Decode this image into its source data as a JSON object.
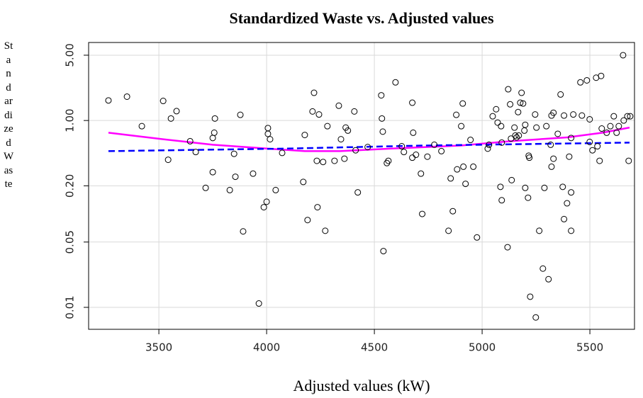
{
  "chart_data": {
    "type": "scatter",
    "title": "Standardized Waste vs. Adjusted values",
    "xlabel": "Adjusted values (kW)",
    "ylabel": "Standardized Waste",
    "xlim": [
      3174,
      5707
    ],
    "ylim": [
      0.00582,
      6.84
    ],
    "ylog": true,
    "grid": true,
    "xticks": [
      3500,
      4000,
      4500,
      5000,
      5500
    ],
    "yticks": [
      {
        "value": 5,
        "label": "5.00"
      },
      {
        "value": 1,
        "label": "1.00"
      },
      {
        "value": 0.2,
        "label": "0.20"
      },
      0.05,
      0.01
    ],
    "color": "#000000",
    "x": [
      3266,
      3352,
      3421,
      3520,
      3556,
      3582,
      3543,
      3645,
      3671,
      3717,
      3750,
      3760,
      3757,
      3750,
      3849,
      3829,
      3855,
      3878,
      3891,
      3937,
      3964,
      3987,
      4000,
      4006,
      4006,
      4016,
      4042,
      4072,
      4170,
      4177,
      4190,
      4213,
      4220,
      4243,
      4233,
      4236,
      4262,
      4272,
      4282,
      4315,
      4335,
      4345,
      4361,
      4367,
      4377,
      4407,
      4413,
      4423,
      4469,
      4532,
      4535,
      4539,
      4542,
      4558,
      4565,
      4598,
      4627,
      4637,
      4676,
      4680,
      4676,
      4693,
      4716,
      4722,
      4746,
      4778,
      4811,
      4844,
      4854,
      4864,
      4880,
      4884,
      4903,
      4910,
      4913,
      4923,
      4946,
      4959,
      4976,
      5026,
      5032,
      5049,
      5065,
      5072,
      5085,
      5088,
      5091,
      5091,
      5118,
      5121,
      5130,
      5137,
      5134,
      5150,
      5154,
      5160,
      5170,
      5167,
      5177,
      5183,
      5190,
      5196,
      5200,
      5200,
      5213,
      5216,
      5219,
      5223,
      5246,
      5249,
      5252,
      5265,
      5282,
      5289,
      5298,
      5308,
      5318,
      5322,
      5322,
      5331,
      5331,
      5351,
      5364,
      5380,
      5374,
      5394,
      5380,
      5404,
      5413,
      5413,
      5413,
      5423,
      5456,
      5463,
      5486,
      5499,
      5512,
      5499,
      5529,
      5552,
      5535,
      5545,
      5555,
      5578,
      5595,
      5611,
      5624,
      5634,
      5654,
      5657,
      5674,
      5680,
      5687
    ],
    "values": [
      1.64,
      1.8,
      0.87,
      1.62,
      1.05,
      1.26,
      0.38,
      0.6,
      0.46,
      0.19,
      0.28,
      1.05,
      0.74,
      0.65,
      0.44,
      0.18,
      0.25,
      1.15,
      0.065,
      0.27,
      0.011,
      0.118,
      0.135,
      0.83,
      0.72,
      0.63,
      0.18,
      0.45,
      0.22,
      0.7,
      0.086,
      1.25,
      1.98,
      1.16,
      0.37,
      0.118,
      0.36,
      0.066,
      0.87,
      0.37,
      1.44,
      0.63,
      0.39,
      0.84,
      0.78,
      1.25,
      0.48,
      0.17,
      0.52,
      1.86,
      1.05,
      0.76,
      0.04,
      0.35,
      0.37,
      2.56,
      0.53,
      0.46,
      1.55,
      0.74,
      0.4,
      0.43,
      0.27,
      0.1,
      0.41,
      0.55,
      0.47,
      0.066,
      0.24,
      0.107,
      1.15,
      0.3,
      0.87,
      1.52,
      0.32,
      0.21,
      0.62,
      0.32,
      0.056,
      0.5,
      0.55,
      1.11,
      1.32,
      0.95,
      0.195,
      0.87,
      0.14,
      0.58,
      0.044,
      2.16,
      1.49,
      0.23,
      0.64,
      0.84,
      0.69,
      0.66,
      0.69,
      1.23,
      1.55,
      1.98,
      1.52,
      0.78,
      0.9,
      0.19,
      0.149,
      0.42,
      0.4,
      0.013,
      1.16,
      0.0078,
      0.84,
      0.066,
      0.026,
      0.19,
      0.87,
      0.02,
      0.55,
      1.13,
      0.32,
      1.21,
      0.39,
      0.72,
      1.9,
      1.13,
      0.195,
      0.13,
      0.088,
      0.41,
      0.17,
      0.066,
      0.65,
      1.16,
      2.56,
      1.13,
      2.69,
      1.03,
      0.48,
      0.59,
      2.87,
      3.0,
      0.53,
      0.37,
      0.82,
      0.74,
      0.87,
      1.11,
      0.74,
      0.87,
      5.0,
      1.0,
      1.11,
      0.37,
      1.11
    ],
    "lines": [
      {
        "color": "#ff00ff",
        "style": "solid",
        "x": [
          3266,
          3520,
          3750,
          4006,
          4177,
          4341,
          4572,
          4901,
          5130,
          5394,
          5559,
          5684
        ],
        "values": [
          0.74,
          0.63,
          0.55,
          0.5,
          0.47,
          0.47,
          0.5,
          0.54,
          0.6,
          0.66,
          0.74,
          0.84
        ]
      },
      {
        "color": "#0000ff",
        "style": "dashed",
        "x": [
          3266,
          4079,
          4736,
          5684
        ],
        "values": [
          0.47,
          0.5,
          0.54,
          0.58
        ]
      }
    ]
  }
}
